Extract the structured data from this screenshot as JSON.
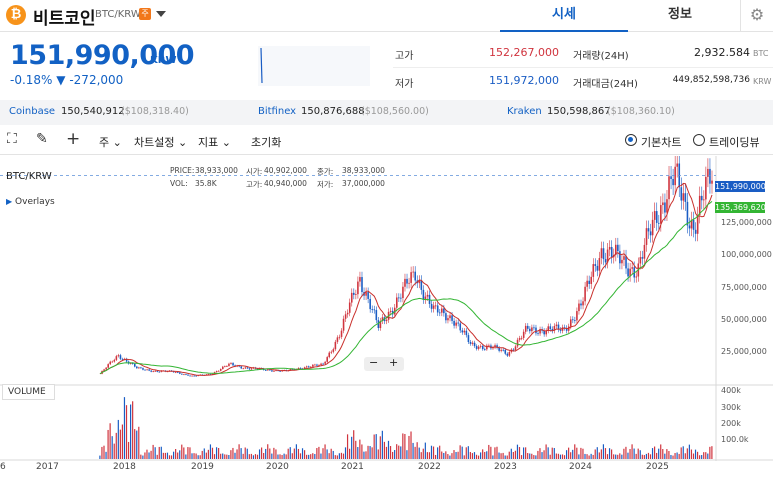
{
  "header": {
    "coin_logo": "₿",
    "coin_name": "비트코인",
    "pair": "BTC/KRW",
    "pair_badge": "주",
    "tabs": [
      "시세",
      "정보"
    ],
    "settings_icon": "gear-icon"
  },
  "price": {
    "current": "151,990,000",
    "unit": "KRW",
    "change_pct": "-0.18%",
    "change_arrow": "▼",
    "change_abs": "-272,000"
  },
  "stats": {
    "high_label": "고가",
    "high_value": "152,267,000",
    "low_label": "저가",
    "low_value": "151,972,000",
    "volume_label": "거래량(24H)",
    "volume_value": "2,932.584",
    "volume_unit": "BTC",
    "amount_label": "거래대금(24H)",
    "amount_value": "449,852,598,736",
    "amount_unit": "KRW"
  },
  "exchanges": [
    {
      "name": "Coinbase",
      "price": "150,540,912",
      "usd": "($108,318.40)"
    },
    {
      "name": "Bitfinex",
      "price": "150,876,688",
      "usd": "($108,560.00)"
    },
    {
      "name": "Kraken",
      "price": "150,598,867",
      "usd": "($108,360.10)"
    }
  ],
  "toolbar": {
    "period": "주",
    "chart_settings": "차트설정",
    "indicators": "지표",
    "reset": "초기화",
    "basic_chart": "기본차트",
    "tradingview": "트레이딩뷰"
  },
  "chart_legend": {
    "price_label": "PRICE:",
    "price_value": "38,933,000",
    "open_label": "시가:",
    "open_value": "40,902,000",
    "close_label": "종가:",
    "close_value": "38,933,000",
    "vol_label": "VOL:",
    "vol_value": "35.8K",
    "high_label": "고가:",
    "high_value": "40,940,000",
    "low_label": "저가:",
    "low_value": "37,000,000"
  },
  "chart_pair": "BTC/KRW",
  "overlays_label": "Overlays",
  "volume_label": "VOLUME",
  "price_tags": {
    "current": "151,990,000",
    "ma": "135,369,620"
  },
  "y_ticks": [
    "125,000,000",
    "100,000,000",
    "75,000,000",
    "50,000,000",
    "25,000,000"
  ],
  "vol_ticks": [
    "400k",
    "300k",
    "200k",
    "100.0k"
  ],
  "x_ticks": [
    "6",
    "2017",
    "2018",
    "2019",
    "2020",
    "2021",
    "2022",
    "2023",
    "2024",
    "2025"
  ],
  "zoom": {
    "minus": "−",
    "plus": "+"
  },
  "colors": {
    "up": "#d0343e",
    "down": "#1a5dc4",
    "accent": "#1261c4",
    "ma_short": "#c9302c",
    "ma_long": "#33b533"
  },
  "chart_data": {
    "type": "line",
    "title": "BTC/KRW",
    "xlabel": "",
    "ylabel": "",
    "ylim": [
      0,
      165000000
    ],
    "x": [
      "2017-10",
      "2018-01",
      "2018-04",
      "2018-07",
      "2018-10",
      "2019-01",
      "2019-04",
      "2019-07",
      "2019-10",
      "2020-01",
      "2020-04",
      "2020-07",
      "2020-10",
      "2021-01",
      "2021-04",
      "2021-07",
      "2021-10",
      "2021-11",
      "2022-01",
      "2022-04",
      "2022-07",
      "2022-10",
      "2023-01",
      "2023-04",
      "2023-07",
      "2023-10",
      "2024-01",
      "2024-03",
      "2024-06",
      "2024-09",
      "2024-11",
      "2025-01",
      "2025-04",
      "2025-07"
    ],
    "series": [
      {
        "values": [
          6000000,
          20000000,
          10000000,
          8000000,
          7500000,
          4200000,
          6000000,
          13000000,
          10000000,
          9000000,
          8000000,
          11000000,
          12500000,
          37000000,
          78000000,
          40000000,
          60000000,
          80000000,
          52000000,
          48000000,
          27000000,
          26000000,
          21000000,
          38000000,
          39000000,
          38000000,
          58000000,
          98000000,
          90000000,
          82000000,
          125000000,
          150000000,
          115000000,
          151990000
        ]
      }
    ]
  }
}
